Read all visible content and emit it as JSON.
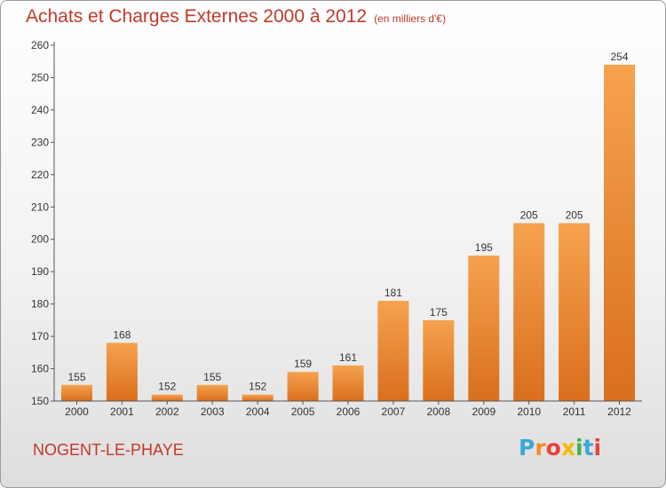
{
  "chart_data": {
    "type": "bar",
    "title": "Achats et Charges Externes 2000 à 2012",
    "subtitle": "(en milliers d'€)",
    "categories": [
      "2000",
      "2001",
      "2002",
      "2003",
      "2004",
      "2005",
      "2006",
      "2007",
      "2008",
      "2009",
      "2010",
      "2011",
      "2012"
    ],
    "values": [
      155,
      168,
      152,
      155,
      152,
      159,
      161,
      181,
      175,
      195,
      205,
      205,
      254
    ],
    "ylim": [
      150,
      260
    ],
    "yticks": [
      150,
      160,
      170,
      180,
      190,
      200,
      210,
      220,
      230,
      240,
      250,
      260
    ],
    "grid": false,
    "bar_color": "#ee8a33"
  },
  "place_name": "NOGENT-LE-PHAYE",
  "logo": {
    "letters": [
      "P",
      "r",
      "o",
      "x",
      "i",
      "t",
      "i"
    ],
    "colors": [
      "#3aa7d8",
      "#f28c1e",
      "#e8413a",
      "#f5b800",
      "#4aae4a",
      "#3aa7d8",
      "#e8413a"
    ]
  }
}
